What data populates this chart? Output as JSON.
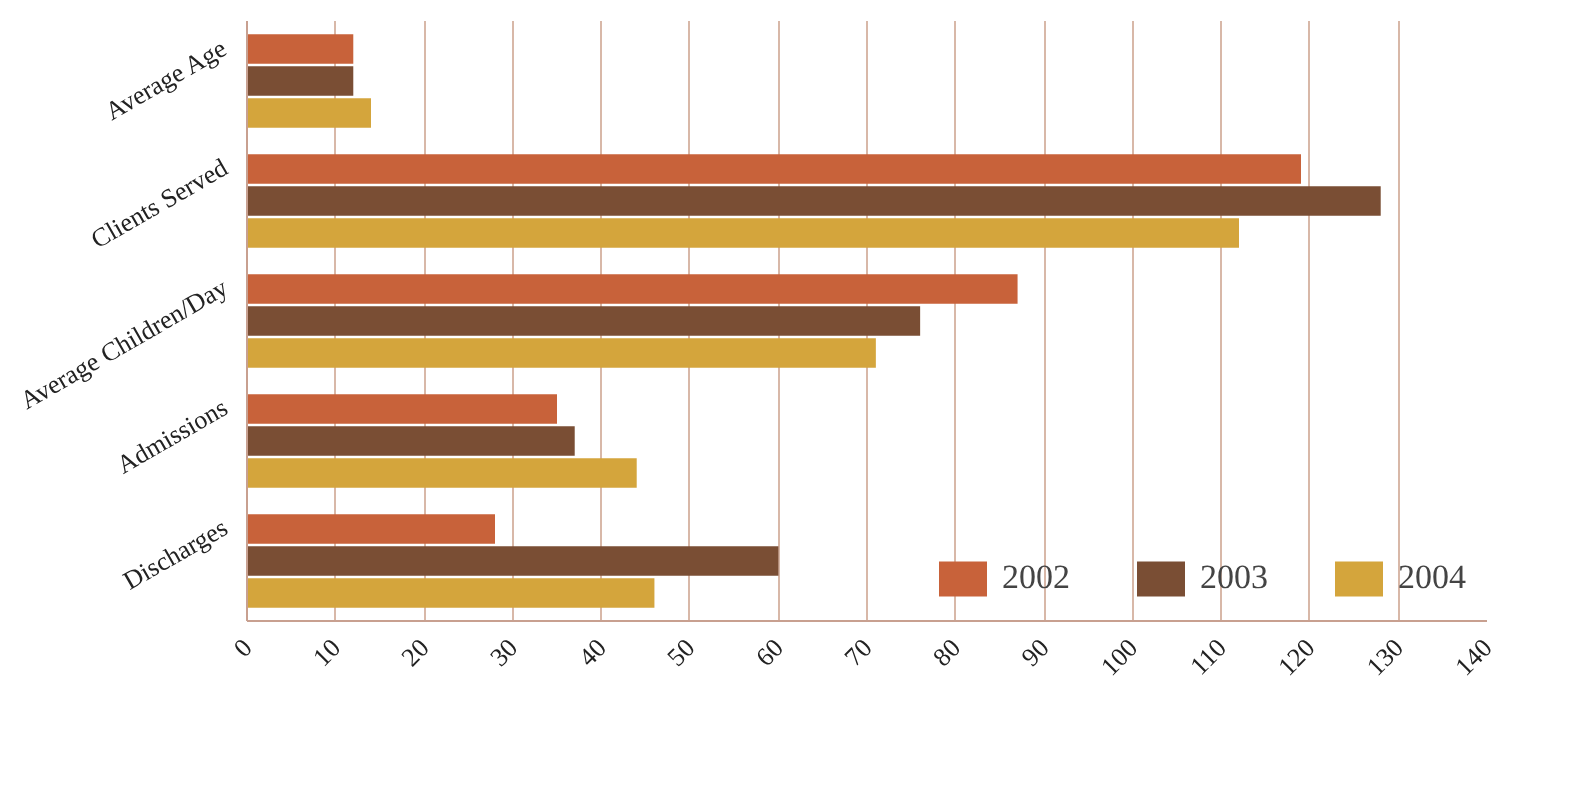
{
  "chart_data": {
    "type": "bar",
    "orientation": "horizontal",
    "categories": [
      "Average Age",
      "Clients Served",
      "Average Children/Day",
      "Admissions",
      "Discharges"
    ],
    "series": [
      {
        "name": "2002",
        "color": "#c8623a",
        "values": [
          12,
          119,
          87,
          35,
          28
        ]
      },
      {
        "name": "2003",
        "color": "#7a4e34",
        "values": [
          12,
          128,
          76,
          37,
          60
        ]
      },
      {
        "name": "2004",
        "color": "#d4a53c",
        "values": [
          14,
          112,
          71,
          44,
          46
        ]
      }
    ],
    "xlim": [
      0,
      140
    ],
    "xticks": [
      0,
      10,
      20,
      30,
      40,
      50,
      60,
      70,
      80,
      90,
      100,
      110,
      120,
      130,
      140
    ],
    "grid": "x",
    "legend": "bottom right"
  }
}
